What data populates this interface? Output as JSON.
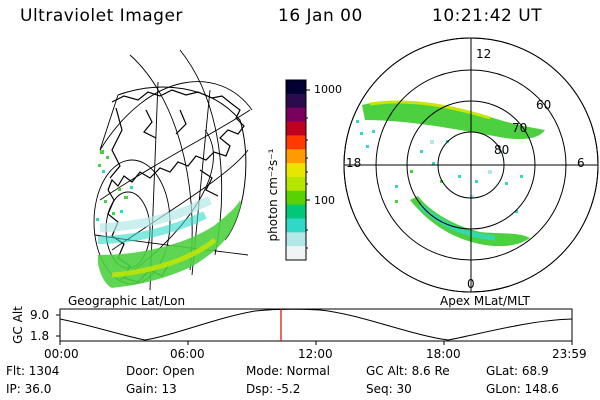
{
  "header": {
    "instrument": "Ultraviolet Imager",
    "date": "16 Jan 00",
    "time": "10:21:42 UT"
  },
  "colorbar": {
    "unit_label": "photon cm⁻²s⁻¹",
    "ticks": [
      "1000",
      "100"
    ],
    "colors": [
      "#000033",
      "#2b0a4d",
      "#7a0060",
      "#c00020",
      "#ff3a00",
      "#ff9a00",
      "#e6e600",
      "#b4e600",
      "#5ad200",
      "#00c878",
      "#30d8c8",
      "#b4e8e8",
      "#f0f4f4"
    ]
  },
  "left_panel": {
    "caption": "Geographic Lat/Lon"
  },
  "right_panel": {
    "caption": "Apex MLat/MLT",
    "lat_labels": [
      "80",
      "70",
      "60"
    ],
    "mlt_labels": [
      "12",
      "18",
      "6",
      "0"
    ]
  },
  "altitude_strip": {
    "ylabel": "GC Alt",
    "yticks": [
      "9.0",
      "1.8"
    ],
    "xticks": [
      "00:00",
      "06:00",
      "12:00",
      "18:00",
      "23:59"
    ],
    "marker_color": "#e00000"
  },
  "info": {
    "flt": "Flt: 1304",
    "ip": "IP: 36.0",
    "door": "Door: Open",
    "gain": "Gain: 13",
    "mode": "Mode: Normal",
    "dsp": "Dsp:    -5.2",
    "gc_alt": "GC Alt: 8.6 Re",
    "seq": "Seq: 30",
    "glat": "GLat:   68.9",
    "glon": "GLon: 148.6"
  }
}
